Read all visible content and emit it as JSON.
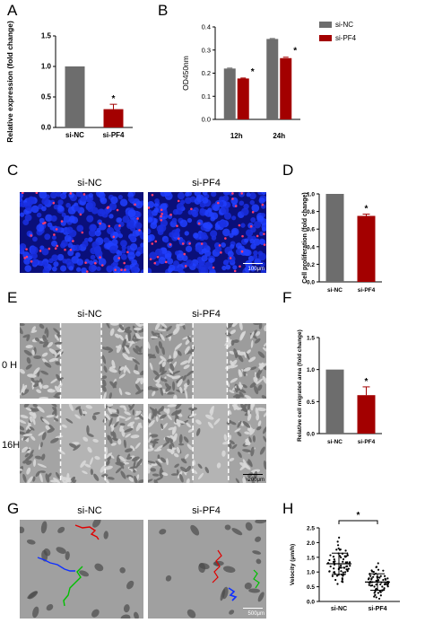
{
  "panels": {
    "A": {
      "letter": "A",
      "chart_data": {
        "type": "bar",
        "categories": [
          "si-NC",
          "si-PF4"
        ],
        "values": [
          1.0,
          0.3
        ],
        "errors": [
          0,
          0.08
        ],
        "colors": [
          "#6d6d6d",
          "#a30000"
        ],
        "ylabel": "Relative expression (fold change)",
        "ylim": [
          0,
          1.5
        ],
        "yticks": [
          "0.0",
          "0.5",
          "1.0",
          "1.5"
        ],
        "significance": [
          "",
          "*"
        ]
      }
    },
    "B": {
      "letter": "B",
      "chart_data": {
        "type": "bar",
        "categories": [
          "12h",
          "24h"
        ],
        "series": [
          {
            "name": "si-NC",
            "values": [
              0.22,
              0.348
            ],
            "errors": [
              0.002,
              0.002
            ],
            "color": "#6d6d6d"
          },
          {
            "name": "si-PF4",
            "values": [
              0.177,
              0.265
            ],
            "errors": [
              0.002,
              0.004
            ],
            "color": "#a30000"
          }
        ],
        "ylabel": "OD450nm",
        "ylim": [
          0.0,
          0.4
        ],
        "yticks": [
          "0.0",
          "0.1",
          "0.2",
          "0.3",
          "0.4"
        ],
        "significance": [
          "*",
          "*"
        ],
        "legend": "right"
      }
    },
    "C": {
      "letter": "C",
      "columns": [
        "si-NC",
        "si-PF4"
      ],
      "scale_bar": "100μm"
    },
    "D": {
      "letter": "D",
      "chart_data": {
        "type": "bar",
        "categories": [
          "si-NC",
          "si-PF4"
        ],
        "values": [
          1.0,
          0.75
        ],
        "errors": [
          0,
          0.02
        ],
        "colors": [
          "#6d6d6d",
          "#a30000"
        ],
        "ylabel": "Cell proliferation (fold change)",
        "ylim": [
          0,
          1.0
        ],
        "yticks": [
          "0.0",
          "0.2",
          "0.4",
          "0.6",
          "0.8",
          "1.0"
        ],
        "significance": [
          "",
          "*"
        ]
      }
    },
    "E": {
      "letter": "E",
      "columns": [
        "si-NC",
        "si-PF4"
      ],
      "rows": [
        "0 H",
        "16H"
      ],
      "scale_bar": "200μm"
    },
    "F": {
      "letter": "F",
      "chart_data": {
        "type": "bar",
        "categories": [
          "si-NC",
          "si-PF4"
        ],
        "values": [
          1.0,
          0.6
        ],
        "errors": [
          0,
          0.13
        ],
        "colors": [
          "#6d6d6d",
          "#a30000"
        ],
        "ylabel": "Relative cell migrated area (fold change)",
        "ylim": [
          0,
          1.5
        ],
        "yticks": [
          "0.0",
          "0.5",
          "1.0",
          "1.5"
        ],
        "significance": [
          "",
          "*"
        ]
      }
    },
    "G": {
      "letter": "G",
      "columns": [
        "si-NC",
        "si-PF4"
      ],
      "scale_bar": "500μm"
    },
    "H": {
      "letter": "H",
      "chart_data": {
        "type": "scatter",
        "categories": [
          "si-NC",
          "si-PF4"
        ],
        "means": [
          1.28,
          0.66
        ],
        "sd": [
          0.36,
          0.28
        ],
        "ylabel": "Velocity (μm/h)",
        "ylim": [
          0.0,
          2.5
        ],
        "yticks": [
          "0.0",
          "0.5",
          "1.0",
          "1.5",
          "2.0",
          "2.5"
        ],
        "significance": "*"
      }
    }
  }
}
